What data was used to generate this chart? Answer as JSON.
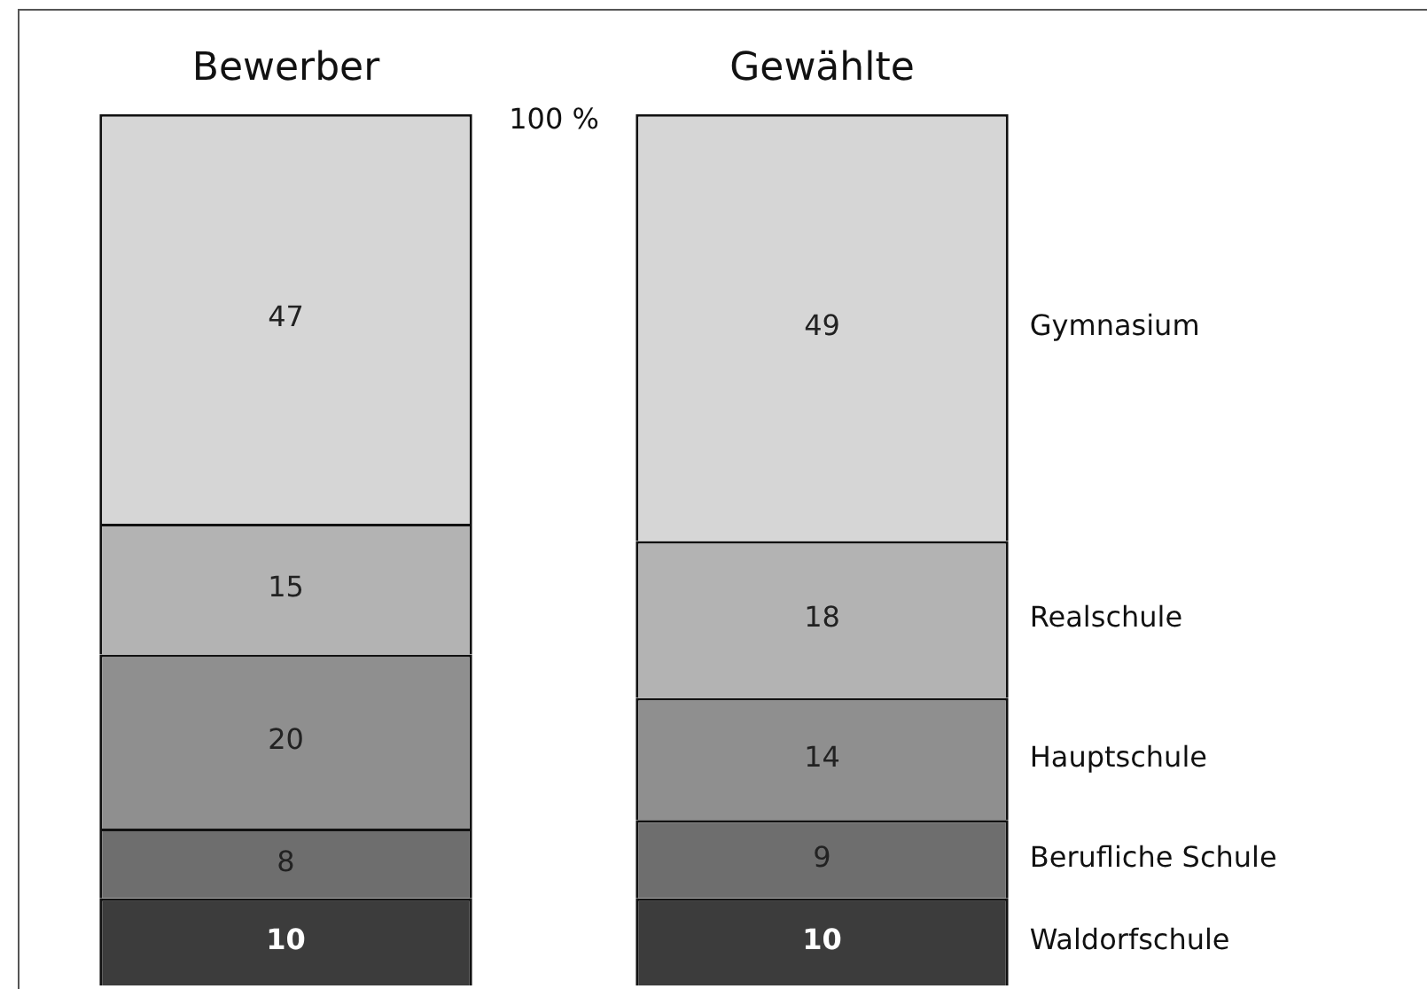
{
  "chart_data": {
    "type": "bar",
    "stacked": true,
    "categories": [
      "Bewerber",
      "Gewählte"
    ],
    "ylim": [
      0,
      100
    ],
    "data_labels": true,
    "legend": false,
    "grid": false,
    "series": [
      {
        "name": "Waldorfschule",
        "color": "#3c3c3c",
        "values": [
          10,
          10
        ]
      },
      {
        "name": "Berufliche Schule",
        "color": "#6e6e6e",
        "values": [
          8,
          9
        ]
      },
      {
        "name": "Hauptschule",
        "color": "#8f8f8f",
        "values": [
          20,
          14
        ]
      },
      {
        "name": "Realschule",
        "color": "#b3b3b3",
        "values": [
          15,
          18
        ]
      },
      {
        "name": "Gymnasium",
        "color": "#d6d6d6",
        "values": [
          47,
          49
        ]
      }
    ],
    "annotations": [
      "100 %"
    ]
  }
}
